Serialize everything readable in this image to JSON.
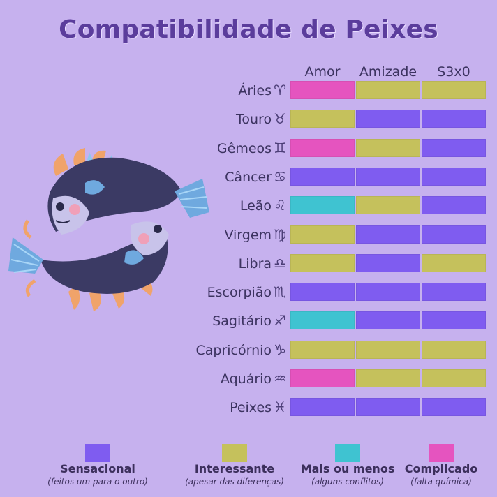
{
  "title": "Compatibilidade de Peixes",
  "chart_data": {
    "type": "table",
    "columns": [
      "Amor",
      "Amizade",
      "S3x0"
    ],
    "rows": [
      {
        "sign": "Áries",
        "glyph": "♈",
        "values": [
          "complicado",
          "interessante",
          "interessante"
        ]
      },
      {
        "sign": "Touro",
        "glyph": "♉",
        "values": [
          "interessante",
          "sensacional",
          "sensacional"
        ]
      },
      {
        "sign": "Gêmeos",
        "glyph": "♊",
        "values": [
          "complicado",
          "interessante",
          "sensacional"
        ]
      },
      {
        "sign": "Câncer",
        "glyph": "♋",
        "values": [
          "sensacional",
          "sensacional",
          "sensacional"
        ]
      },
      {
        "sign": "Leão",
        "glyph": "♌",
        "values": [
          "mais_ou_menos",
          "interessante",
          "sensacional"
        ]
      },
      {
        "sign": "Virgem",
        "glyph": "♍",
        "values": [
          "interessante",
          "sensacional",
          "sensacional"
        ]
      },
      {
        "sign": "Libra",
        "glyph": "♎",
        "values": [
          "interessante",
          "sensacional",
          "interessante"
        ]
      },
      {
        "sign": "Escorpião",
        "glyph": "♏",
        "values": [
          "sensacional",
          "sensacional",
          "sensacional"
        ]
      },
      {
        "sign": "Sagitário",
        "glyph": "♐",
        "values": [
          "mais_ou_menos",
          "sensacional",
          "sensacional"
        ]
      },
      {
        "sign": "Capricórnio",
        "glyph": "♑",
        "values": [
          "interessante",
          "interessante",
          "interessante"
        ]
      },
      {
        "sign": "Aquário",
        "glyph": "♒",
        "values": [
          "complicado",
          "interessante",
          "interessante"
        ]
      },
      {
        "sign": "Peixes",
        "glyph": "♓",
        "values": [
          "sensacional",
          "sensacional",
          "sensacional"
        ]
      }
    ],
    "legend": [
      {
        "key": "sensacional",
        "label": "Sensacional",
        "sub": "(feitos um para o outro)",
        "color": "#7f5cf0"
      },
      {
        "key": "interessante",
        "label": "Interessante",
        "sub": "(apesar das diferenças)",
        "color": "#c5c15c"
      },
      {
        "key": "mais_ou_menos",
        "label": "Mais ou menos",
        "sub": "(alguns conflitos)",
        "color": "#3fc3d1"
      },
      {
        "key": "complicado",
        "label": "Complicado",
        "sub": "(falta química)",
        "color": "#e554bf"
      }
    ]
  }
}
